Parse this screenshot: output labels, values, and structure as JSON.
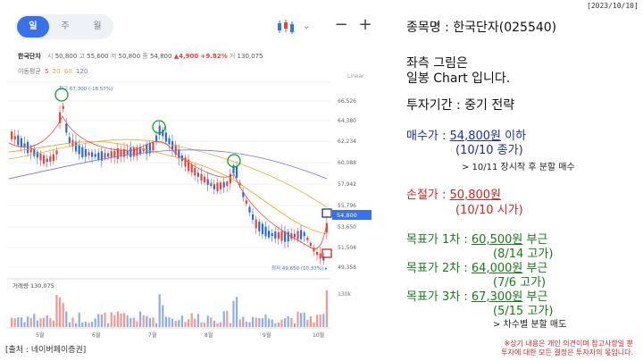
{
  "date_stamp": "[2023/10/10]",
  "tabs": [
    {
      "label": "일",
      "active": true
    },
    {
      "label": "주",
      "active": false
    },
    {
      "label": "월",
      "active": false
    }
  ],
  "toolbar": {
    "chart_type_icon": "candlestick-icon",
    "chevron": "⌄",
    "zoom_out": "−",
    "zoom_in": "+"
  },
  "quote": {
    "name": "한국단자",
    "open_label": "시",
    "open": "50,800",
    "high_label": "고",
    "high": "55,600",
    "low_label": "저",
    "low": "50,800",
    "close_label": "종",
    "close": "54,800",
    "change": "▲4,900",
    "change_pct": "+9.82%",
    "volume_label": "거",
    "volume": "130,075"
  },
  "ma": {
    "label": "이동평균",
    "periods": [
      "5",
      "20",
      "60",
      "120"
    ],
    "colors": [
      "#e8453c",
      "#f0a030",
      "#d6b24a",
      "#7b6fd6"
    ]
  },
  "chart": {
    "scale_label": "Linear",
    "price_ticks": [
      "66,526",
      "64,380",
      "62,234",
      "60,088",
      "57,942",
      "55,796",
      "53,650",
      "51,504",
      "49,358"
    ],
    "current_price": "54,800",
    "high_annotation": "최고 67,300 (-18.57%)",
    "low_annotation": "최저 49,650 (10.37%) ▸",
    "volume_title": "거래량 130,075",
    "volume_tick": "130k",
    "months": [
      "5월",
      "6월",
      "7월",
      "8월",
      "9월",
      "10월"
    ],
    "up_color": "#e8453c",
    "down_color": "#2f6bd6"
  },
  "source": "[출처 : 네이버페이증권]",
  "info": {
    "stock_line": "종목명 : 한국단자(025540)",
    "desc1": "좌측 그림은",
    "desc2": "일봉 Chart 입니다.",
    "period_line": "투자기간 : 중기 전략",
    "buy_label": "매수가 : ",
    "buy_price": "54,800원",
    "buy_suffix": " 이하",
    "buy_sub": "(10/10 종가)",
    "buy_note": "> 10/11 장시작 후 분할 매수",
    "stop_label": "손절가 : ",
    "stop_price": "50,800원",
    "stop_sub": "(10/10 시가)",
    "t1_label": "목표가 1차 : ",
    "t1_price": "60,500원",
    "t1_suffix": " 부근",
    "t1_sub": "(8/14 고가)",
    "t2_label": "목표가 2차 : ",
    "t2_price": "64,000원",
    "t2_suffix": " 부근",
    "t2_sub": "(7/6 고가)",
    "t3_label": "목표가 3차 : ",
    "t3_price": "67,300원",
    "t3_suffix": " 부근",
    "t3_sub": "(5/15 고가)",
    "t_note": "> 차수별 분할 매도"
  },
  "disclaimer": {
    "line1": "※상기 내용은 개인 의견이며 참고사항일 뿐",
    "line2": "투자에 대한 모든 결정은 투자자의 몫입니다."
  }
}
